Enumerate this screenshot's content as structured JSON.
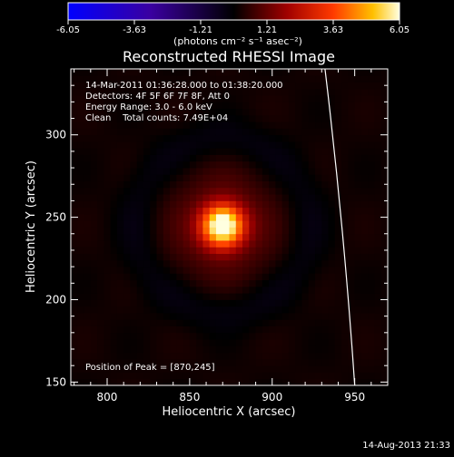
{
  "chart_data": {
    "type": "heatmap",
    "title": "Reconstructed RHESSI Image",
    "xlabel": "Heliocentric X (arcsec)",
    "ylabel": "Heliocentric Y (arcsec)",
    "xlim": [
      778,
      970
    ],
    "ylim": [
      148,
      340
    ],
    "xticks": [
      800,
      850,
      900,
      950
    ],
    "yticks": [
      150,
      200,
      250,
      300
    ],
    "colorbar": {
      "ticks": [
        "-6.05",
        "-3.63",
        "-1.21",
        "1.21",
        "3.63",
        "6.05"
      ],
      "range": [
        -6.05,
        6.05
      ],
      "unit_label": "(photons cm⁻² s⁻¹ asec⁻²)"
    },
    "annotations": [
      "14-Mar-2011 01:36:28.000 to 01:38:20.000",
      "Detectors: 4F 5F 6F 7F 8F, Att 0",
      "Energy Range: 3.0 - 6.0 keV",
      "Clean    Total counts: 7.49E+04"
    ],
    "peak_label": "Position of Peak = [870,245]",
    "peak": {
      "x": 870,
      "y": 245,
      "value": 6.05
    },
    "source": {
      "sigma_arcsec": 9,
      "halo_sigma_arcsec": 30,
      "halo_value": 0.9
    },
    "limb": {
      "points": [
        [
          932,
          340
        ],
        [
          950,
          148
        ]
      ]
    },
    "pixel_size_arcsec": 4,
    "footer_date": "14-Aug-2013 21:33"
  }
}
